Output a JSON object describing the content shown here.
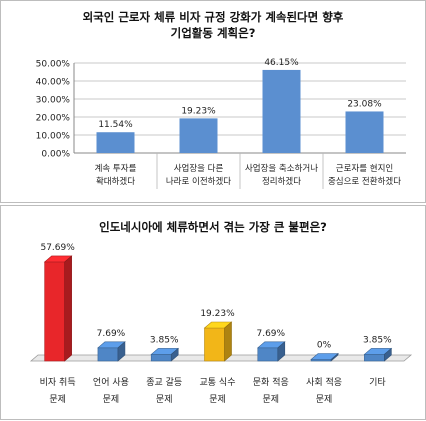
{
  "chart_data": [
    {
      "type": "bar",
      "title_lines": [
        "외국인 근로자 체류 비자 규정 강화가 계속된다면 향후",
        "기업활동 계획은?"
      ],
      "categories": [
        [
          "계속 투자를",
          "확대하겠다"
        ],
        [
          "사업장을 다른",
          "나라로 이전하겠다"
        ],
        [
          "사업장을 축소하거나",
          "정리하겠다"
        ],
        [
          "근로자를 현지인",
          "중심으로 전환하겠다"
        ]
      ],
      "values": [
        11.54,
        19.23,
        46.15,
        23.08
      ],
      "value_labels": [
        "11.54%",
        "19.23%",
        "46.15%",
        "23.08%"
      ],
      "y_ticks": [
        "0.00%",
        "10.00%",
        "20.00%",
        "30.00%",
        "40.00%",
        "50.00%"
      ],
      "ylim": [
        0,
        50
      ],
      "bar_color": "#5b8fd0",
      "grid": true
    },
    {
      "type": "bar",
      "style": "3d",
      "title_lines": [
        "인도네시아에 체류하면서 겪는 가장 큰 불편은?"
      ],
      "categories": [
        [
          "비자 취득",
          "문제"
        ],
        [
          "언어 사용",
          "문제"
        ],
        [
          "종교 갈등",
          "문제"
        ],
        [
          "교통 식수",
          "문제"
        ],
        [
          "문화 적응",
          "문제"
        ],
        [
          "사회 적응",
          "문제"
        ],
        [
          "기타"
        ]
      ],
      "values": [
        57.69,
        7.69,
        3.85,
        19.23,
        7.69,
        0,
        3.85
      ],
      "value_labels": [
        "57.69%",
        "7.69%",
        "3.85%",
        "19.23%",
        "7.69%",
        "0%",
        "3.85%"
      ],
      "bar_colors": [
        "#e8262a",
        "#4f86c6",
        "#4f86c6",
        "#f2b618",
        "#4f86c6",
        "#4f86c6",
        "#4f86c6"
      ],
      "ylim": [
        0,
        60
      ],
      "grid": false
    }
  ]
}
